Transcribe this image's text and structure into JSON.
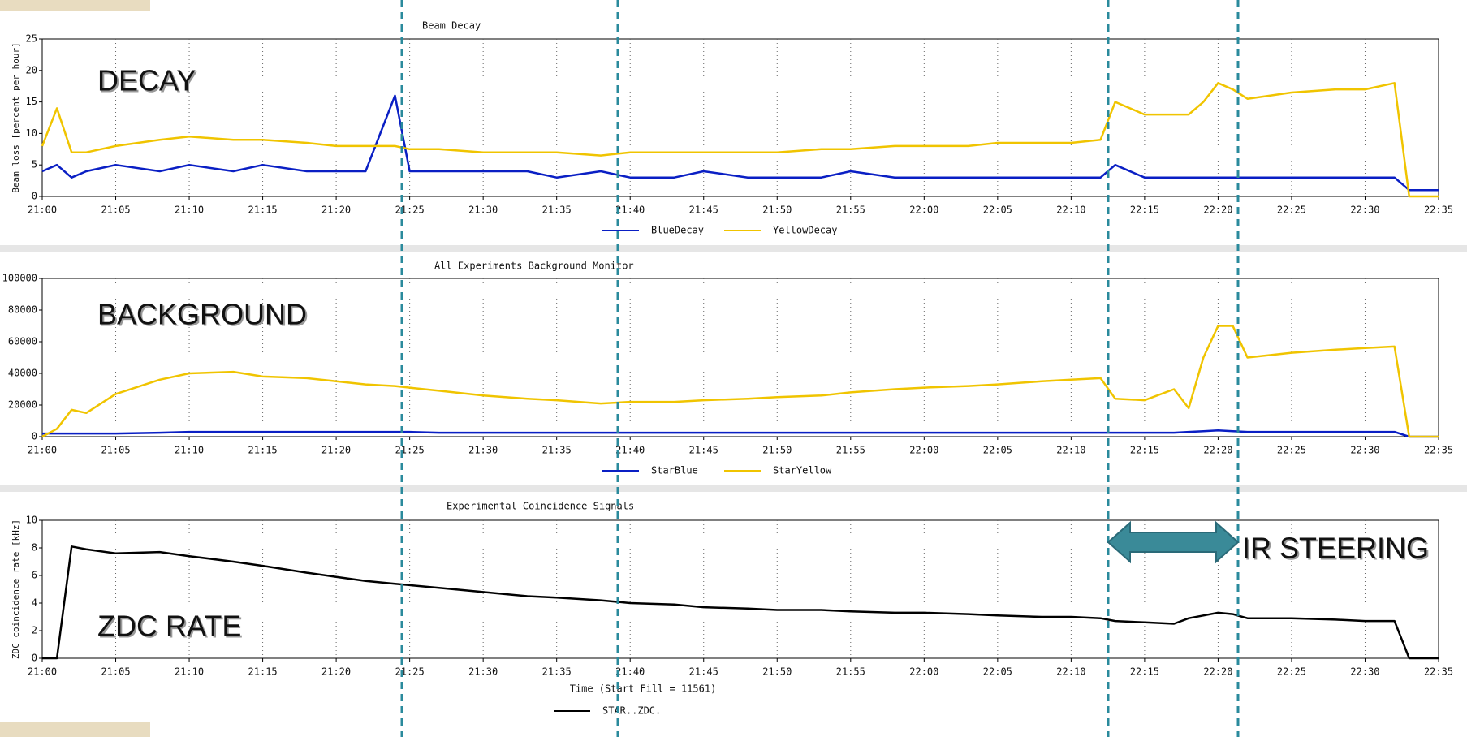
{
  "chart_data": [
    {
      "type": "line",
      "title": "Beam Decay",
      "y_label": "Beam loss [percent per hour]",
      "annotation": "DECAY",
      "x": [
        "21:00",
        "21:01",
        "21:02",
        "21:03",
        "21:05",
        "21:08",
        "21:10",
        "21:13",
        "21:15",
        "21:18",
        "21:20",
        "21:22",
        "21:24",
        "21:25",
        "21:27",
        "21:30",
        "21:33",
        "21:35",
        "21:38",
        "21:40",
        "21:43",
        "21:45",
        "21:48",
        "21:50",
        "21:53",
        "21:55",
        "21:58",
        "22:00",
        "22:03",
        "22:05",
        "22:08",
        "22:10",
        "22:12",
        "22:13",
        "22:15",
        "22:17",
        "22:18",
        "22:19",
        "22:20",
        "22:21",
        "22:22",
        "22:25",
        "22:28",
        "22:30",
        "22:32",
        "22:33",
        "22:35"
      ],
      "xlim": [
        "21:00",
        "22:35"
      ],
      "xticks": [
        "21:00",
        "21:05",
        "21:10",
        "21:15",
        "21:20",
        "21:25",
        "21:30",
        "21:35",
        "21:40",
        "21:45",
        "21:50",
        "21:55",
        "22:00",
        "22:05",
        "22:10",
        "22:15",
        "22:20",
        "22:25",
        "22:30",
        "22:35"
      ],
      "ylim": [
        0,
        25
      ],
      "yticks": [
        0,
        5,
        10,
        15,
        20,
        25
      ],
      "grid": "x",
      "series": [
        {
          "name": "BlueDecay",
          "color": "#0a1fc4",
          "values": [
            4,
            5,
            3,
            4,
            5,
            4,
            5,
            4,
            5,
            4,
            4,
            4,
            16,
            4,
            4,
            4,
            4,
            3,
            4,
            3,
            3,
            4,
            3,
            3,
            3,
            4,
            3,
            3,
            3,
            3,
            3,
            3,
            3,
            5,
            3,
            3,
            3,
            3,
            3,
            3,
            3,
            3,
            3,
            3,
            3,
            1,
            1
          ]
        },
        {
          "name": "YellowDecay",
          "color": "#f0c400",
          "values": [
            8,
            14,
            7,
            7,
            8,
            9,
            9.5,
            9,
            9,
            8.5,
            8,
            8,
            8,
            7.5,
            7.5,
            7,
            7,
            7,
            6.5,
            7,
            7,
            7,
            7,
            7,
            7.5,
            7.5,
            8,
            8,
            8,
            8.5,
            8.5,
            8.5,
            9,
            15,
            13,
            13,
            13,
            15,
            18,
            17,
            15.5,
            16.5,
            17,
            17,
            18,
            0,
            0
          ]
        }
      ]
    },
    {
      "type": "line",
      "title": "All Experiments Background Monitor",
      "annotation": "BACKGROUND",
      "x": [
        "21:00",
        "21:01",
        "21:02",
        "21:03",
        "21:05",
        "21:08",
        "21:10",
        "21:13",
        "21:15",
        "21:18",
        "21:20",
        "21:22",
        "21:24",
        "21:25",
        "21:27",
        "21:30",
        "21:33",
        "21:35",
        "21:38",
        "21:40",
        "21:43",
        "21:45",
        "21:48",
        "21:50",
        "21:53",
        "21:55",
        "21:58",
        "22:00",
        "22:03",
        "22:05",
        "22:08",
        "22:10",
        "22:12",
        "22:13",
        "22:15",
        "22:17",
        "22:18",
        "22:19",
        "22:20",
        "22:21",
        "22:22",
        "22:25",
        "22:28",
        "22:30",
        "22:32",
        "22:33",
        "22:35"
      ],
      "xlim": [
        "21:00",
        "22:35"
      ],
      "xticks": [
        "21:00",
        "21:05",
        "21:10",
        "21:15",
        "21:20",
        "21:25",
        "21:30",
        "21:35",
        "21:40",
        "21:45",
        "21:50",
        "21:55",
        "22:00",
        "22:05",
        "22:10",
        "22:15",
        "22:20",
        "22:25",
        "22:30",
        "22:35"
      ],
      "ylim": [
        0,
        100000
      ],
      "yticks": [
        0,
        20000,
        40000,
        60000,
        80000,
        100000
      ],
      "grid": "x",
      "series": [
        {
          "name": "StarBlue",
          "color": "#0a1fc4",
          "values": [
            2000,
            2000,
            2000,
            2000,
            2000,
            2500,
            3000,
            3000,
            3000,
            3000,
            3000,
            3000,
            3000,
            3000,
            2500,
            2500,
            2500,
            2500,
            2500,
            2500,
            2500,
            2500,
            2500,
            2500,
            2500,
            2500,
            2500,
            2500,
            2500,
            2500,
            2500,
            2500,
            2500,
            2500,
            2500,
            2500,
            3000,
            3500,
            4000,
            3500,
            3000,
            3000,
            3000,
            3000,
            3000,
            0,
            0
          ]
        },
        {
          "name": "StarYellow",
          "color": "#f0c400",
          "values": [
            0,
            5000,
            17000,
            15000,
            27000,
            36000,
            40000,
            41000,
            38000,
            37000,
            35000,
            33000,
            32000,
            31000,
            29000,
            26000,
            24000,
            23000,
            21000,
            22000,
            22000,
            23000,
            24000,
            25000,
            26000,
            28000,
            30000,
            31000,
            32000,
            33000,
            35000,
            36000,
            37000,
            24000,
            23000,
            30000,
            18000,
            50000,
            70000,
            70000,
            50000,
            53000,
            55000,
            56000,
            57000,
            0,
            0
          ]
        }
      ]
    },
    {
      "type": "line",
      "title": "Experimental Coincidence Signals",
      "y_label": "ZDC coincidence rate [kHz]",
      "x_label": "Time (Start Fill = 11561)",
      "annotations": [
        "ZDC RATE",
        "IR STEERING"
      ],
      "x": [
        "21:00",
        "21:01",
        "21:02",
        "21:03",
        "21:05",
        "21:08",
        "21:10",
        "21:13",
        "21:15",
        "21:18",
        "21:20",
        "21:22",
        "21:24",
        "21:25",
        "21:27",
        "21:30",
        "21:33",
        "21:35",
        "21:38",
        "21:40",
        "21:43",
        "21:45",
        "21:48",
        "21:50",
        "21:53",
        "21:55",
        "21:58",
        "22:00",
        "22:03",
        "22:05",
        "22:08",
        "22:10",
        "22:12",
        "22:13",
        "22:15",
        "22:17",
        "22:18",
        "22:19",
        "22:20",
        "22:21",
        "22:22",
        "22:25",
        "22:28",
        "22:30",
        "22:32",
        "22:33",
        "22:35"
      ],
      "xlim": [
        "21:00",
        "22:35"
      ],
      "xticks": [
        "21:00",
        "21:05",
        "21:10",
        "21:15",
        "21:20",
        "21:25",
        "21:30",
        "21:35",
        "21:40",
        "21:45",
        "21:50",
        "21:55",
        "22:00",
        "22:05",
        "22:10",
        "22:15",
        "22:20",
        "22:25",
        "22:30",
        "22:35"
      ],
      "ylim": [
        0,
        10
      ],
      "yticks": [
        0,
        2,
        4,
        6,
        8,
        10
      ],
      "grid": "x",
      "series": [
        {
          "name": "STAR..ZDC.",
          "color": "#000000",
          "values": [
            0,
            0,
            8.1,
            7.9,
            7.6,
            7.7,
            7.4,
            7.0,
            6.7,
            6.2,
            5.9,
            5.6,
            5.4,
            5.3,
            5.1,
            4.8,
            4.5,
            4.4,
            4.2,
            4.0,
            3.9,
            3.7,
            3.6,
            3.5,
            3.5,
            3.4,
            3.3,
            3.3,
            3.2,
            3.1,
            3.0,
            3.0,
            2.9,
            2.7,
            2.6,
            2.5,
            2.9,
            3.1,
            3.3,
            3.2,
            2.9,
            2.9,
            2.8,
            2.7,
            2.7,
            0,
            0
          ]
        }
      ]
    }
  ]
}
